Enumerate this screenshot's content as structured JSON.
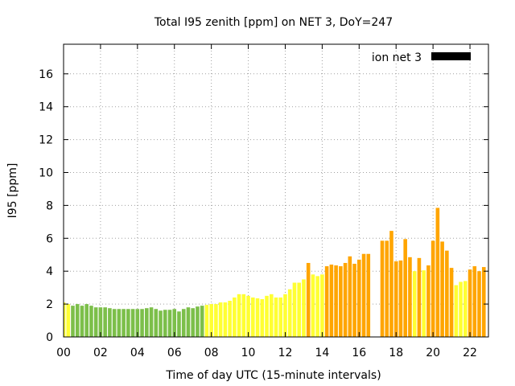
{
  "chart_data": {
    "type": "bar",
    "title": "Total I95 zenith [ppm] on NET 3, DoY=247",
    "xlabel": "Time of day UTC (15-minute intervals)",
    "ylabel": "I95 [ppm]",
    "xlim": [
      0,
      23
    ],
    "ylim": [
      0,
      17.8
    ],
    "x_ticks": [
      "00",
      "02",
      "04",
      "06",
      "08",
      "10",
      "12",
      "14",
      "16",
      "18",
      "20",
      "22"
    ],
    "x_tick_values": [
      0,
      2,
      4,
      6,
      8,
      10,
      12,
      14,
      16,
      18,
      20,
      22
    ],
    "y_ticks": [
      0,
      2,
      4,
      6,
      8,
      10,
      12,
      14,
      16
    ],
    "grid": true,
    "legend": {
      "label": "ion net 3",
      "position": "top-right",
      "swatch_color": "#000000"
    },
    "bar_step_hours": 0.25,
    "bar_width_fraction": 0.8,
    "colors": {
      "low": "#7cbf4a",
      "mid": "#ffff33",
      "high": "#ffa500"
    },
    "series": [
      {
        "values": [
          2.1,
          2.0,
          1.9,
          2.0,
          1.9,
          2.0,
          1.9,
          1.8,
          1.8,
          1.8,
          1.75,
          1.7,
          1.7,
          1.7,
          1.7,
          1.7,
          1.7,
          1.7,
          1.75,
          1.8,
          1.7,
          1.6,
          1.65,
          1.65,
          1.7,
          1.55,
          1.7,
          1.8,
          1.75,
          1.85,
          1.9,
          1.95,
          2.0,
          2.0,
          2.1,
          2.1,
          2.2,
          2.4,
          2.6,
          2.6,
          2.5,
          2.4,
          2.35,
          2.3,
          2.5,
          2.6,
          2.4,
          2.4,
          2.6,
          2.9,
          3.3,
          3.3,
          3.5,
          4.5,
          3.8,
          3.7,
          3.8,
          4.3,
          4.4,
          4.35,
          4.3,
          4.5,
          4.9,
          4.45,
          4.7,
          5.05,
          5.05,
          0,
          0,
          5.85,
          5.85,
          6.45,
          4.6,
          4.65,
          5.95,
          4.85,
          4.0,
          4.8,
          4.05,
          4.35,
          5.85,
          7.85,
          5.8,
          5.25,
          4.2,
          3.15,
          3.35,
          3.4,
          4.1,
          4.3,
          4.0,
          4.25
        ],
        "colors": [
          "mid",
          "mid",
          "low",
          "low",
          "low",
          "low",
          "low",
          "low",
          "low",
          "low",
          "low",
          "low",
          "low",
          "low",
          "low",
          "low",
          "low",
          "low",
          "low",
          "low",
          "low",
          "low",
          "low",
          "low",
          "low",
          "low",
          "low",
          "low",
          "low",
          "low",
          "low",
          "mid",
          "mid",
          "mid",
          "mid",
          "mid",
          "mid",
          "mid",
          "mid",
          "mid",
          "mid",
          "mid",
          "mid",
          "mid",
          "mid",
          "mid",
          "mid",
          "mid",
          "mid",
          "mid",
          "mid",
          "mid",
          "mid",
          "high",
          "mid",
          "mid",
          "mid",
          "high",
          "high",
          "high",
          "high",
          "high",
          "high",
          "high",
          "high",
          "high",
          "high",
          "mid",
          "mid",
          "high",
          "high",
          "high",
          "high",
          "high",
          "high",
          "high",
          "mid",
          "high",
          "mid",
          "high",
          "high",
          "high",
          "high",
          "high",
          "high",
          "mid",
          "mid",
          "mid",
          "high",
          "high",
          "high",
          "high"
        ]
      }
    ]
  }
}
